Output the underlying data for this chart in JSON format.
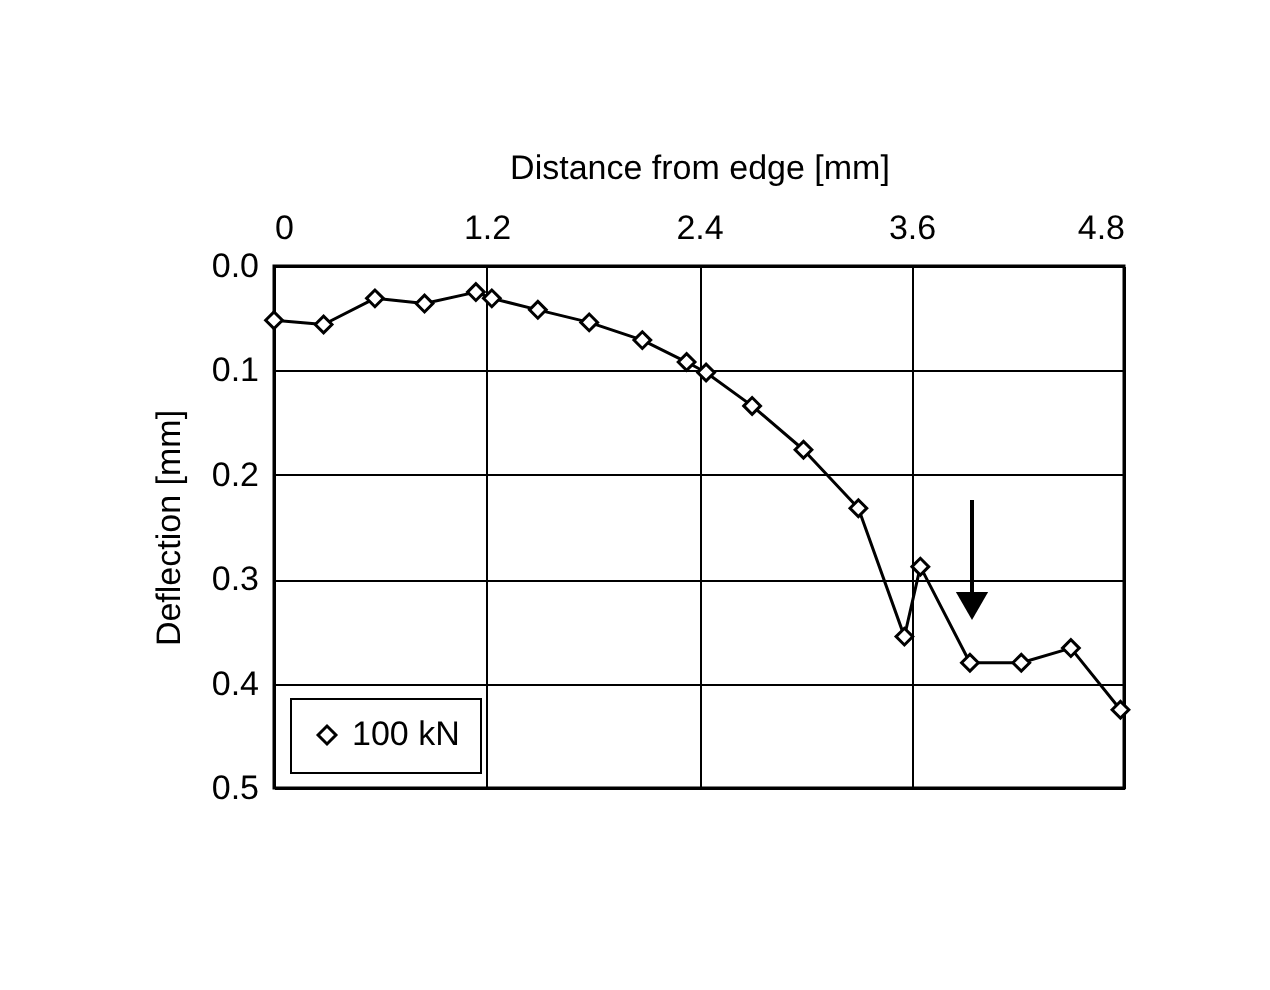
{
  "chart_data": {
    "type": "line",
    "xlabel": "Distance from edge [mm]",
    "ylabel": "Deflection [mm]",
    "x": [
      0,
      0.28,
      0.57,
      0.85,
      1.14,
      1.23,
      1.49,
      1.78,
      2.08,
      2.33,
      2.44,
      2.7,
      2.99,
      3.3,
      3.56,
      3.65,
      3.93,
      4.22,
      4.5,
      4.78
    ],
    "series": [
      {
        "name": "100 kN",
        "color": "#000000",
        "values": [
          0.052,
          0.056,
          0.031,
          0.036,
          0.025,
          0.031,
          0.042,
          0.054,
          0.071,
          0.092,
          0.102,
          0.134,
          0.176,
          0.232,
          0.355,
          0.288,
          0.38,
          0.38,
          0.366,
          0.425
        ]
      }
    ],
    "xlim": [
      0,
      4.8
    ],
    "xticks": [
      0,
      1.2,
      2.4,
      3.6,
      4.8
    ],
    "ylim": [
      0.5,
      0.0
    ],
    "yticks": [
      {
        "value": 0,
        "label": "0.0"
      },
      0.1,
      0.2,
      0.3,
      0.4,
      0.5
    ],
    "grid": true,
    "legend": "bottom left",
    "marker": "diamond",
    "line_style": "solid"
  }
}
